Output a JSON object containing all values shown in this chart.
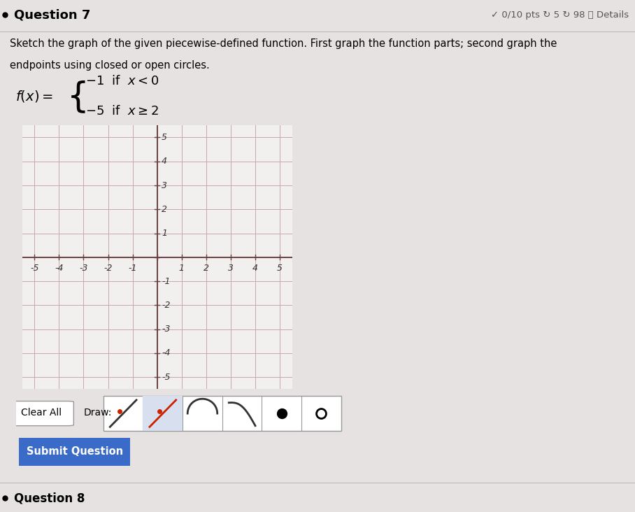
{
  "title": "Question 7",
  "score_text": "✓ 0/10 pts ↻ 5 ↻ 98 ⓘ Details",
  "instruction_line1": "Sketch the graph of the given piecewise-defined function. First graph the function parts; second graph the",
  "instruction_line2": "endpoints using closed or open circles.",
  "grid_xlim": [
    -5.5,
    5.5
  ],
  "grid_ylim": [
    -5.5,
    5.5
  ],
  "grid_xticks": [
    -5,
    -4,
    -3,
    -2,
    -1,
    1,
    2,
    3,
    4,
    5
  ],
  "grid_yticks": [
    -5,
    -4,
    -3,
    -2,
    -1,
    1,
    2,
    3,
    4,
    5
  ],
  "grid_color": "#c8a8a8",
  "axis_color": "#6a4040",
  "tick_label_color": "#333333",
  "bg_color": "#f2efef",
  "page_bg": "#e6e2e2",
  "button_color": "#3a6bc9",
  "button_text": "Submit Question",
  "clear_text": "Clear All",
  "draw_text": "Draw:",
  "question8_text": "Question 8"
}
